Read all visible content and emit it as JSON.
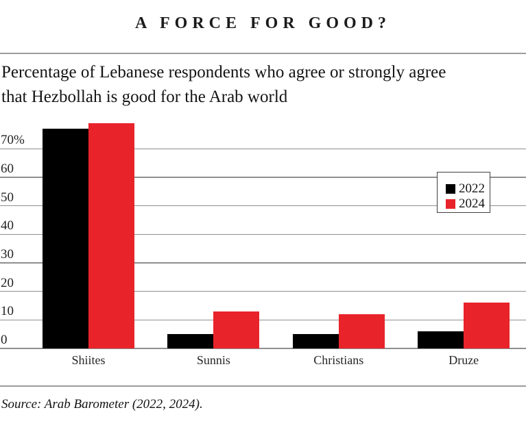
{
  "page": {
    "title": "A FORCE FOR GOOD?",
    "subtitle_lines": [
      "Percentage of Lebanese respondents who agree or strongly agree",
      "that Hezbollah is good for the Arab world"
    ],
    "source": "Source: Arab Barometer (2022, 2024)."
  },
  "colors": {
    "bar_2022": "#000000",
    "bar_2024": "#e8242a",
    "gridline": "#8e8e8e",
    "rule": "#9b9b9b",
    "text": "#161616"
  },
  "chart_data": {
    "type": "bar",
    "title": "A FORCE FOR GOOD?",
    "subtitle": "Percentage of Lebanese respondents who agree or strongly agree that Hezbollah is good for the Arab world",
    "categories": [
      "Shiites",
      "Sunnis",
      "Christians",
      "Druze"
    ],
    "series": [
      {
        "name": "2022",
        "color": "#000000",
        "values": [
          77,
          5,
          5,
          6
        ]
      },
      {
        "name": "2024",
        "color": "#e8242a",
        "values": [
          79,
          13,
          12,
          16
        ]
      }
    ],
    "xlabel": "",
    "ylabel": "",
    "ylim": [
      0,
      80
    ],
    "yticks": [
      {
        "value": 70,
        "label": "70%"
      },
      {
        "value": 60,
        "label": "60"
      },
      {
        "value": 50,
        "label": "50"
      },
      {
        "value": 40,
        "label": "40"
      },
      {
        "value": 30,
        "label": "30"
      },
      {
        "value": 20,
        "label": "20"
      },
      {
        "value": 10,
        "label": "10"
      },
      {
        "value": 0,
        "label": "0"
      }
    ],
    "grid": "horizontal",
    "legend_position": "inside-right",
    "source": "Source: Arab Barometer (2022, 2024)."
  }
}
